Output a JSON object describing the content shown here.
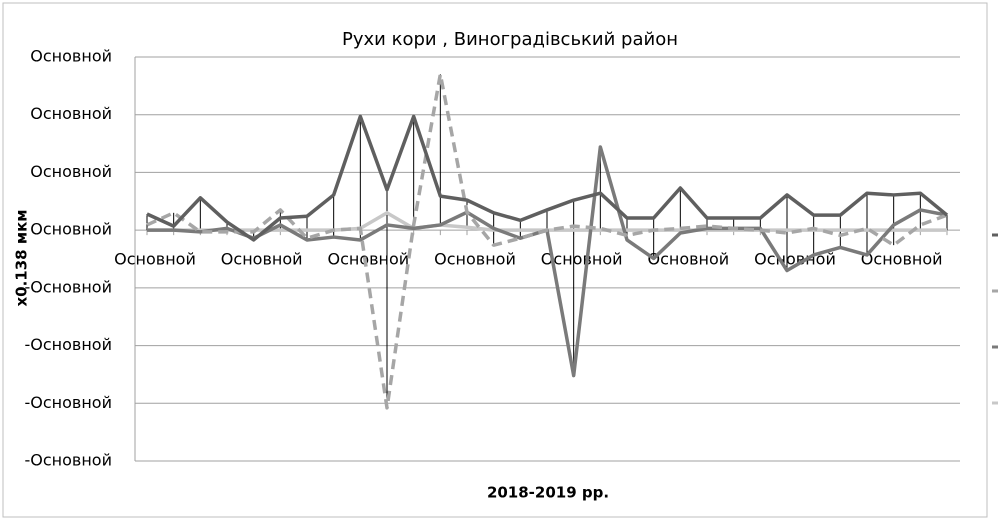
{
  "chart_data": {
    "type": "line",
    "title": "Рухи кори , Виноградівський район",
    "x_label": "2018-2019 рр.",
    "y_label": "x0.138 мкм",
    "categories": [
      "Основной",
      null,
      null,
      null,
      "Основной",
      null,
      null,
      null,
      "Основной",
      null,
      null,
      null,
      "Основной",
      null,
      null,
      null,
      "Основной",
      null,
      null,
      null,
      "Основной",
      null,
      null,
      null,
      "Основной",
      null,
      null,
      null,
      "Основной",
      null,
      null
    ],
    "series": [
      {
        "color": "#5f5f5f",
        "dash": false,
        "values": [
          0.28,
          0.07,
          0.56,
          0.14,
          -0.17,
          0.21,
          0.24,
          0.61,
          1.97,
          0.7,
          1.97,
          0.59,
          0.52,
          0.3,
          0.17,
          0.35,
          0.52,
          0.64,
          0.21,
          0.21,
          0.73,
          0.21,
          0.21,
          0.21,
          0.61,
          0.26,
          0.26,
          0.64,
          0.61,
          0.64,
          0.26
        ]
      },
      {
        "color": "#a6a6a6",
        "dash": true,
        "values": [
          0.09,
          0.3,
          -0.03,
          -0.03,
          -0.03,
          0.35,
          -0.14,
          0,
          0.03,
          -3.08,
          0.09,
          2.7,
          0.31,
          -0.26,
          -0.14,
          0,
          0.07,
          0.03,
          -0.09,
          0,
          0.03,
          0.07,
          0.03,
          0,
          -0.05,
          0.03,
          -0.09,
          0.03,
          -0.26,
          0.09,
          0.26
        ]
      },
      {
        "color": "#7a7a7a",
        "dash": false,
        "values": [
          0,
          0,
          -0.03,
          0.03,
          -0.14,
          0.09,
          -0.17,
          -0.12,
          -0.17,
          0.09,
          0.03,
          0.09,
          0.31,
          0.03,
          -0.14,
          0,
          -2.52,
          1.44,
          -0.17,
          -0.49,
          -0.05,
          0.03,
          0.03,
          0.03,
          -0.7,
          -0.43,
          -0.3,
          -0.43,
          0.09,
          0.35,
          0.26
        ]
      },
      {
        "color": "#c8c8c8",
        "dash": false,
        "values": [
          0,
          0,
          0,
          0,
          0,
          0,
          0,
          0,
          0.03,
          0.3,
          0.03,
          0.09,
          0.05,
          0,
          0,
          0,
          0,
          0,
          0,
          0,
          0,
          0,
          0,
          0,
          0,
          0,
          0,
          0,
          0,
          0,
          0
        ]
      }
    ],
    "ylim": [
      -4,
      3
    ],
    "yticks": [
      {
        "value": 3,
        "label": "Основной"
      },
      {
        "value": 2,
        "label": "Основной"
      },
      {
        "value": 1,
        "label": "Основной"
      },
      {
        "value": 0,
        "label": "Основной"
      },
      {
        "value": -1,
        "label": "-Основной"
      },
      {
        "value": -2,
        "label": "-Основной"
      },
      {
        "value": -3,
        "label": "-Основной"
      },
      {
        "value": -4,
        "label": "-Основной"
      }
    ],
    "grid": true,
    "drop_lines": true,
    "legend": "right"
  }
}
